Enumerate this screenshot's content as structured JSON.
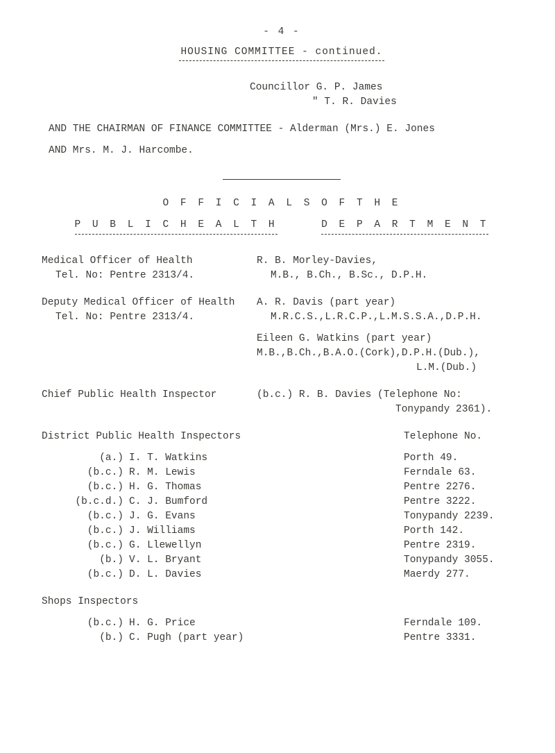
{
  "page_number": "- 4 -",
  "title_line": "HOUSING  COMMITTEE    -    continued.",
  "councillor_line": "Councillor G. P. James",
  "councillor_line2_quote": "\"",
  "councillor_line2_rest": "     T. R. Davies",
  "chairman_line": "AND THE CHAIRMAN OF FINANCE COMMITTEE - Alderman (Mrs.) E. Jones",
  "mrs_line": "AND Mrs. M. J. Harcombe.",
  "officials_line": "O F F I C I A L S     O F     T H E",
  "public_health_dept_left": "P U B L I C     H E A L T H",
  "public_health_dept_right": "D E P A R T M E N T",
  "moh": {
    "left1": "Medical Officer of Health",
    "left2": "Tel. No: Pentre 2313/4.",
    "right1": "R. B. Morley-Davies,",
    "right2": "M.B., B.Ch., B.Sc., D.P.H."
  },
  "dmoh": {
    "left1": "Deputy Medical Officer of Health",
    "left2": "Tel. No: Pentre 2313/4.",
    "right1": "A. R. Davis (part year)",
    "right2": "M.R.C.S.,L.R.C.P.,L.M.S.S.A.,D.P.H.",
    "right3": "Eileen G. Watkins (part year)",
    "right4": "M.B.,B.Ch.,B.A.O.(Cork),D.P.H.(Dub.),",
    "right5": "L.M.(Dub.)"
  },
  "cphi": {
    "left": "Chief Public Health Inspector",
    "right1": "(b.c.) R. B. Davies (Telephone No:",
    "right2": "Tonypandy 2361)."
  },
  "dph_head_left": "District Public Health Inspectors",
  "dph_head_right": "Telephone No.",
  "inspectors": [
    {
      "code": "(a.)",
      "name": "I. T. Watkins",
      "tel": "Porth 49."
    },
    {
      "code": "(b.c.)",
      "name": "R. M. Lewis",
      "tel": "Ferndale 63."
    },
    {
      "code": "(b.c.)",
      "name": "H. G. Thomas",
      "tel": "Pentre 2276."
    },
    {
      "code": "(b.c.d.)",
      "name": "C. J. Bumford",
      "tel": "Pentre 3222."
    },
    {
      "code": "(b.c.)",
      "name": "J. G. Evans",
      "tel": "Tonypandy 2239."
    },
    {
      "code": "(b.c.)",
      "name": "J. Williams",
      "tel": "Porth 142."
    },
    {
      "code": "(b.c.)",
      "name": "G. Llewellyn",
      "tel": "Pentre 2319."
    },
    {
      "code": "(b.)",
      "name": "V. L. Bryant",
      "tel": "Tonypandy 3055."
    },
    {
      "code": "(b.c.)",
      "name": "D. L. Davies",
      "tel": "Maerdy 277."
    }
  ],
  "shops_head": "Shops Inspectors",
  "shops": [
    {
      "code": "(b.c.)",
      "name": "H. G. Price",
      "tel": "Ferndale 109."
    },
    {
      "code": "(b.)",
      "name": "C. Pugh (part year)",
      "tel": "Pentre 3331."
    }
  ],
  "colors": {
    "text": "#3a3a36",
    "background": "#ffffff"
  }
}
